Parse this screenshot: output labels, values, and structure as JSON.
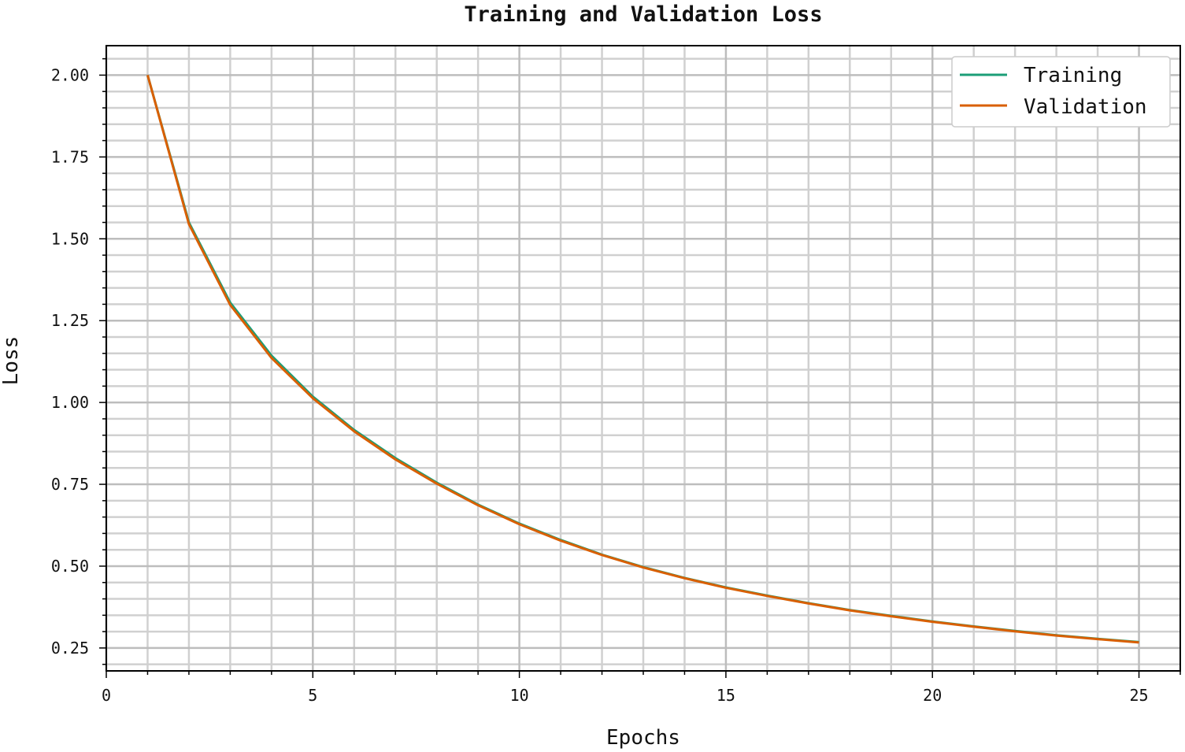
{
  "chart_data": {
    "type": "line",
    "title": "Training and Validation Loss",
    "xlabel": "Epochs",
    "ylabel": "Loss",
    "xlim": [
      0,
      26
    ],
    "ylim": [
      0.18,
      2.09
    ],
    "xticks": [
      0,
      5,
      10,
      15,
      20,
      25
    ],
    "yticks": [
      0.25,
      0.5,
      0.75,
      1.0,
      1.25,
      1.5,
      1.75,
      2.0
    ],
    "xtick_labels": [
      "0",
      "5",
      "10",
      "15",
      "20",
      "25"
    ],
    "ytick_labels": [
      "0.25",
      "0.50",
      "0.75",
      "1.00",
      "1.25",
      "1.50",
      "1.75",
      "2.00"
    ],
    "grid": true,
    "legend_position": "top-right",
    "x": [
      1,
      2,
      3,
      4,
      5,
      6,
      7,
      8,
      9,
      10,
      11,
      12,
      13,
      14,
      15,
      16,
      17,
      18,
      19,
      20,
      21,
      22,
      23,
      24,
      25
    ],
    "series": [
      {
        "name": "Training",
        "color": "#1b9e77",
        "values": [
          2.0,
          1.55,
          1.305,
          1.143,
          1.018,
          0.916,
          0.83,
          0.755,
          0.688,
          0.63,
          0.58,
          0.535,
          0.497,
          0.464,
          0.435,
          0.41,
          0.387,
          0.366,
          0.348,
          0.331,
          0.316,
          0.302,
          0.289,
          0.278,
          0.268
        ]
      },
      {
        "name": "Validation",
        "color": "#d95f02",
        "values": [
          2.0,
          1.545,
          1.298,
          1.136,
          1.013,
          0.912,
          0.826,
          0.752,
          0.686,
          0.628,
          0.578,
          0.534,
          0.496,
          0.463,
          0.434,
          0.409,
          0.386,
          0.365,
          0.347,
          0.33,
          0.315,
          0.301,
          0.288,
          0.277,
          0.267
        ]
      }
    ]
  }
}
